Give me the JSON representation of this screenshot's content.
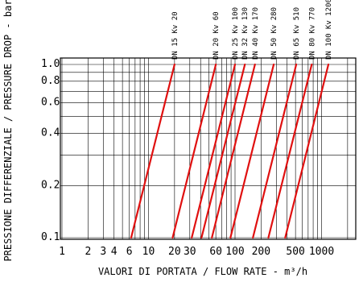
{
  "chart_data": {
    "type": "line",
    "title": "",
    "xlabel": "VALORI DI PORTATA / FLOW RATE - m³/h",
    "ylabel": "PRESSIONE DIFFERENZIALE / PRESSURE DROP - bar",
    "xscale": "log",
    "yscale": "log",
    "xlim": [
      1,
      1500
    ],
    "ylim": [
      0.1,
      1.0
    ],
    "grid": true,
    "x_ticks": [
      1,
      2,
      3,
      4,
      6,
      10,
      20,
      30,
      60,
      100,
      200,
      500,
      1000
    ],
    "x_tick_labels": [
      "1",
      "2",
      "3",
      "4",
      "6",
      "10",
      "20",
      "30",
      "60",
      "100",
      "200",
      "500",
      "1000"
    ],
    "y_ticks": [
      0.1,
      0.2,
      0.4,
      0.6,
      0.8,
      1.0
    ],
    "y_tick_labels": [
      "0.1",
      "0.2",
      "0.4",
      "0.6",
      "0.8",
      "1.0"
    ],
    "series_color": "#e01010",
    "series": [
      {
        "label": "DN 15   Kv 20",
        "kv": 20,
        "x": [
          6.3,
          20
        ],
        "y": [
          0.1,
          1.0
        ]
      },
      {
        "label": "DN 20   Kv 60",
        "kv": 60,
        "x": [
          19,
          60
        ],
        "y": [
          0.1,
          1.0
        ]
      },
      {
        "label": "DN 25   Kv 100",
        "kv": 100,
        "x": [
          31.6,
          100
        ],
        "y": [
          0.1,
          1.0
        ]
      },
      {
        "label": "DN 32   Kv 130",
        "kv": 130,
        "x": [
          41,
          130
        ],
        "y": [
          0.1,
          1.0
        ]
      },
      {
        "label": "DN 40   Kv 170",
        "kv": 170,
        "x": [
          54,
          170
        ],
        "y": [
          0.1,
          1.0
        ]
      },
      {
        "label": "DN 50   Kv 280",
        "kv": 280,
        "x": [
          88.5,
          280
        ],
        "y": [
          0.1,
          1.0
        ]
      },
      {
        "label": "DN 65   Kv 510",
        "kv": 510,
        "x": [
          161,
          510
        ],
        "y": [
          0.1,
          1.0
        ]
      },
      {
        "label": "DN 80   Kv 770",
        "kv": 770,
        "x": [
          243,
          770
        ],
        "y": [
          0.1,
          1.0
        ]
      },
      {
        "label": "DN 100   Kv 1200",
        "kv": 1200,
        "x": [
          380,
          1200
        ],
        "y": [
          0.1,
          1.0
        ]
      }
    ]
  }
}
